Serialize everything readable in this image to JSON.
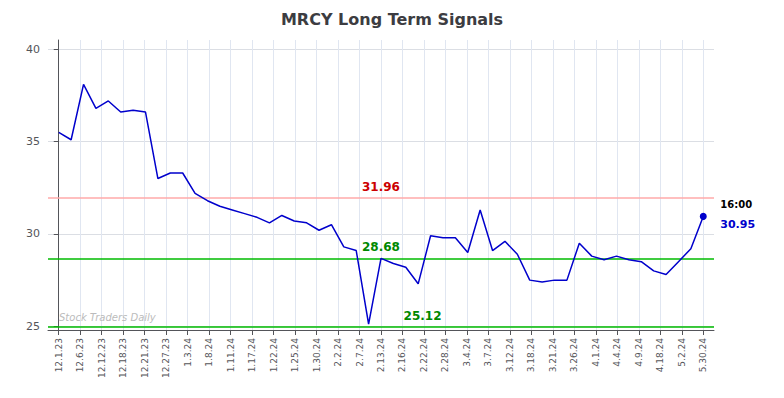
{
  "chart_data": {
    "type": "line",
    "title": "MRCY Long Term Signals",
    "x": [
      0,
      0.5769230769230769,
      1.1538461538461537,
      1.7307692307692308,
      2.3076923076923075,
      2.8846153846153846,
      3.4615384615384617,
      4.038461538461538,
      4.615384615384615,
      5.1923076923076925,
      5.769230769230769,
      6.346153846153846,
      6.923076923076923,
      7.5,
      8.076923076923077,
      8.653846153846153,
      9.23076923076923,
      9.807692307692308,
      10.384615384615385,
      10.961538461538462,
      11.538461538461538,
      12.115384615384615,
      12.692307692307692,
      13.26923076923077,
      13.846153846153847,
      14.423076923076923,
      15,
      15.576923076923077,
      16.153846153846153,
      16.73076923076923,
      17.307692307692307,
      17.884615384615383,
      18.46153846153846,
      19.03846153846154,
      19.615384615384617,
      20.192307692307693,
      20.76923076923077,
      21.346153846153847,
      21.923076923076923,
      22.5,
      23.076923076923077,
      23.653846153846153,
      24.23076923076923,
      24.807692307692307,
      25.384615384615383,
      25.96153846153846,
      26.53846153846154,
      27.115384615384617,
      27.692307692307693,
      28.26923076923077,
      28.846153846153847,
      29.423076923076923,
      30
    ],
    "values": [
      35.5,
      35.1,
      38.1,
      36.8,
      37.2,
      36.6,
      36.7,
      36.6,
      33.0,
      33.3,
      33.3,
      32.2,
      31.8,
      31.5,
      31.3,
      31.1,
      30.9,
      30.6,
      31.0,
      30.7,
      30.6,
      30.2,
      30.5,
      29.3,
      29.1,
      25.12,
      28.68,
      28.4,
      28.2,
      27.3,
      29.9,
      29.8,
      29.8,
      29.0,
      31.3,
      29.1,
      29.6,
      28.9,
      27.5,
      27.4,
      27.5,
      27.5,
      29.5,
      28.8,
      28.6,
      28.8,
      28.6,
      28.5,
      28.0,
      27.8,
      28.5,
      29.2,
      30.95
    ],
    "color": "#0000cc",
    "xlim": [
      -0.5,
      30.5
    ],
    "xticks": [
      {
        "value": 0,
        "label": "12.1.23"
      },
      {
        "value": 1,
        "label": "12.6.23"
      },
      {
        "value": 2,
        "label": "12.12.23"
      },
      {
        "value": 3,
        "label": "12.18.23"
      },
      {
        "value": 4,
        "label": "12.21.23"
      },
      {
        "value": 5,
        "label": "12.27.23"
      },
      {
        "value": 6,
        "label": "1.3.24"
      },
      {
        "value": 7,
        "label": "1.8.24"
      },
      {
        "value": 8,
        "label": "1.11.24"
      },
      {
        "value": 9,
        "label": "1.17.24"
      },
      {
        "value": 10,
        "label": "1.22.24"
      },
      {
        "value": 11,
        "label": "1.25.24"
      },
      {
        "value": 12,
        "label": "1.30.24"
      },
      {
        "value": 13,
        "label": "2.2.24"
      },
      {
        "value": 14,
        "label": "2.7.24"
      },
      {
        "value": 15,
        "label": "2.13.24"
      },
      {
        "value": 16,
        "label": "2.16.24"
      },
      {
        "value": 17,
        "label": "2.22.24"
      },
      {
        "value": 18,
        "label": "2.28.24"
      },
      {
        "value": 19,
        "label": "3.4.24"
      },
      {
        "value": 20,
        "label": "3.7.24"
      },
      {
        "value": 21,
        "label": "3.12.24"
      },
      {
        "value": 22,
        "label": "3.18.24"
      },
      {
        "value": 23,
        "label": "3.21.24"
      },
      {
        "value": 24,
        "label": "3.26.24"
      },
      {
        "value": 25,
        "label": "4.1.24"
      },
      {
        "value": 26,
        "label": "4.4.24"
      },
      {
        "value": 27,
        "label": "4.9.24"
      },
      {
        "value": 28,
        "label": "4.18.24"
      },
      {
        "value": 29,
        "label": "5.2.24"
      },
      {
        "value": 30,
        "label": "5.30.24"
      }
    ],
    "ylim": [
      24.8,
      40.5
    ],
    "yticks": [
      25,
      30,
      35,
      40
    ],
    "grid": true,
    "reference_lines": [
      {
        "value": 31.96,
        "color": "#ffaaaa",
        "label": "31.96",
        "label_color": "#cc0000"
      },
      {
        "value": 28.68,
        "color": "#00bb00",
        "label": "28.68",
        "label_color": "#008800"
      },
      {
        "value": 25.0,
        "color": "#00bb00"
      }
    ],
    "annotations": [
      {
        "text": "25.12",
        "color": "#008800"
      },
      {
        "text": "16:00"
      },
      {
        "text": "30.95",
        "color": "#0000cc"
      },
      {
        "text": "Stock Traders Daily",
        "color": "#bbbbbb"
      }
    ]
  }
}
